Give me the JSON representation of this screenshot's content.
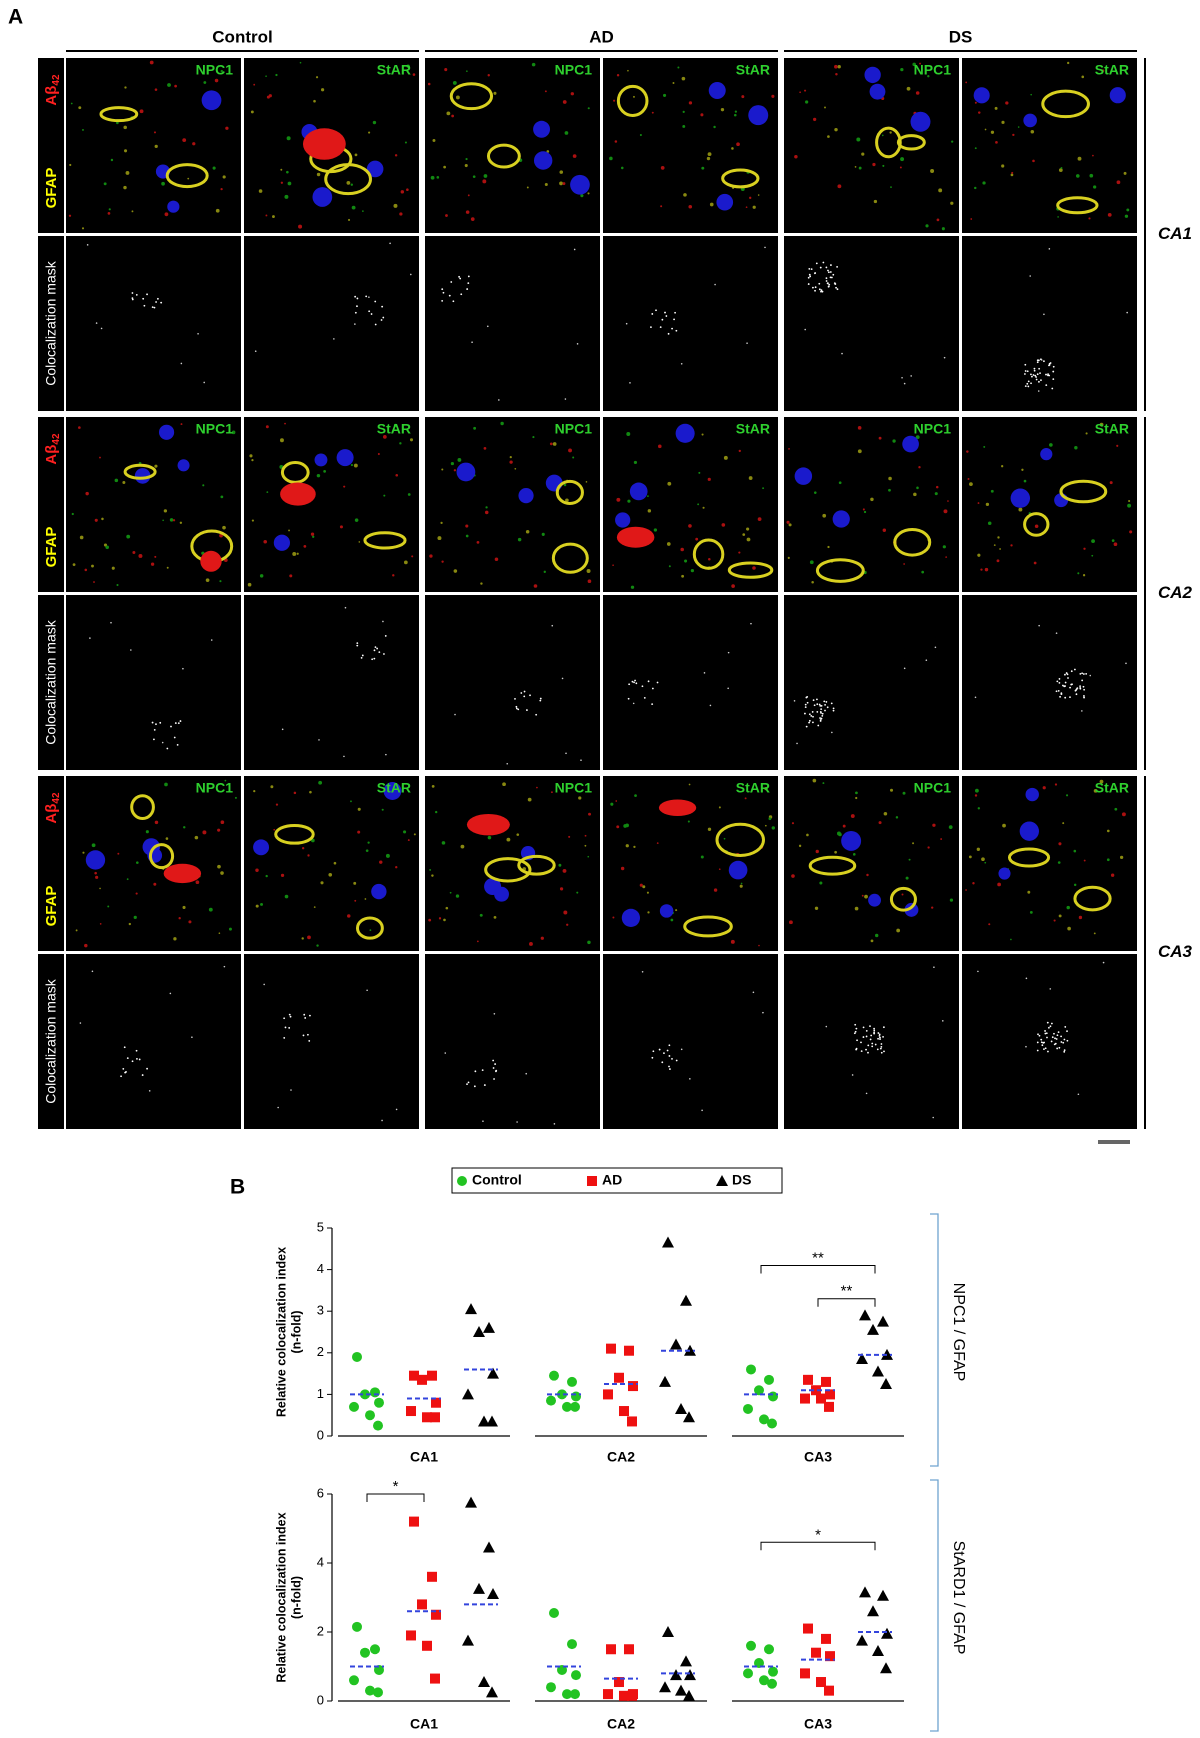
{
  "figure_labels": {
    "a": "A",
    "b": "B"
  },
  "panel_a": {
    "conditions": [
      "Control",
      "AD",
      "DS"
    ],
    "markers": [
      "NPC1",
      "StAR"
    ],
    "stain": {
      "abeta": "Aβ",
      "abeta_sub": "42",
      "gfap": "GFAP"
    },
    "mask_label": "Colocalization mask",
    "regions": [
      "CA1",
      "CA2",
      "CA3"
    ]
  },
  "chart_data": [
    {
      "type": "strip",
      "categories": [
        "CA1",
        "CA2",
        "CA3"
      ],
      "ylabel": [
        "Relative colocalization index",
        "(n-fold)"
      ],
      "side_label": "NPC1 / GFAP",
      "ylim": [
        0,
        5
      ],
      "yticks": [
        0,
        1,
        2,
        3,
        4,
        5
      ],
      "legend": true,
      "mean_color": "#3344dd",
      "series": [
        {
          "name": "Control",
          "color": "#22c322",
          "marker": "circle",
          "values": [
            [
              1.9,
              1.05,
              1.0,
              0.8,
              0.7,
              0.5,
              0.25
            ],
            [
              1.45,
              1.3,
              1.0,
              0.95,
              0.85,
              0.7,
              0.7
            ],
            [
              1.6,
              1.35,
              1.1,
              0.95,
              0.65,
              0.4,
              0.3
            ]
          ],
          "means": [
            1.0,
            1.0,
            1.0
          ]
        },
        {
          "name": "AD",
          "color": "#ee1111",
          "marker": "square",
          "values": [
            [
              1.45,
              1.45,
              1.35,
              0.8,
              0.6,
              0.45,
              0.45
            ],
            [
              2.1,
              2.05,
              1.4,
              1.2,
              1.0,
              0.6,
              0.35
            ],
            [
              1.35,
              1.3,
              1.1,
              1.0,
              0.9,
              0.9,
              0.7
            ]
          ],
          "means": [
            0.9,
            1.25,
            1.1
          ]
        },
        {
          "name": "DS",
          "color": "#000000",
          "marker": "triangle",
          "values": [
            [
              3.05,
              2.6,
              2.5,
              1.5,
              1.0,
              0.35,
              0.35
            ],
            [
              4.65,
              3.25,
              2.2,
              2.05,
              1.3,
              0.65,
              0.45
            ],
            [
              2.9,
              2.75,
              2.55,
              1.95,
              1.85,
              1.55,
              1.25
            ]
          ],
          "means": [
            1.6,
            2.05,
            1.95
          ]
        }
      ],
      "annotations": [
        {
          "text": "**",
          "category": 2,
          "from": 0,
          "to": 2,
          "y": 4.1
        },
        {
          "text": "**",
          "category": 2,
          "from": 1,
          "to": 2,
          "y": 3.3
        }
      ]
    },
    {
      "type": "strip",
      "categories": [
        "CA1",
        "CA2",
        "CA3"
      ],
      "ylabel": [
        "Relative colocalization index",
        "(n-fold)"
      ],
      "side_label": "StARD1 / GFAP",
      "ylim": [
        0,
        6
      ],
      "yticks": [
        0,
        2,
        4,
        6
      ],
      "legend": false,
      "mean_color": "#3344dd",
      "series": [
        {
          "name": "Control",
          "color": "#22c322",
          "marker": "circle",
          "values": [
            [
              2.15,
              1.5,
              1.4,
              0.9,
              0.6,
              0.3,
              0.25
            ],
            [
              2.55,
              1.65,
              0.9,
              0.75,
              0.4,
              0.2,
              0.2
            ],
            [
              1.6,
              1.5,
              1.1,
              0.85,
              0.8,
              0.6,
              0.5
            ]
          ],
          "means": [
            1.0,
            1.0,
            1.0
          ]
        },
        {
          "name": "AD",
          "color": "#ee1111",
          "marker": "square",
          "values": [
            [
              5.2,
              3.6,
              2.8,
              2.5,
              1.9,
              1.6,
              0.65
            ],
            [
              1.5,
              1.5,
              0.55,
              0.2,
              0.2,
              0.15,
              0.15
            ],
            [
              2.1,
              1.8,
              1.4,
              1.3,
              0.8,
              0.55,
              0.3
            ]
          ],
          "means": [
            2.6,
            0.65,
            1.2
          ]
        },
        {
          "name": "DS",
          "color": "#000000",
          "marker": "triangle",
          "values": [
            [
              5.75,
              4.45,
              3.25,
              3.1,
              1.75,
              0.55,
              0.25
            ],
            [
              2.0,
              1.15,
              0.75,
              0.75,
              0.4,
              0.3,
              0.15
            ],
            [
              3.15,
              3.05,
              2.6,
              1.95,
              1.75,
              1.45,
              0.95
            ]
          ],
          "means": [
            2.8,
            0.8,
            2.0
          ]
        }
      ],
      "annotations": [
        {
          "text": "*",
          "category": 0,
          "from": 0,
          "to": 1,
          "y": 6.0
        },
        {
          "text": "*",
          "category": 2,
          "from": 0,
          "to": 2,
          "y": 4.6
        }
      ]
    }
  ]
}
